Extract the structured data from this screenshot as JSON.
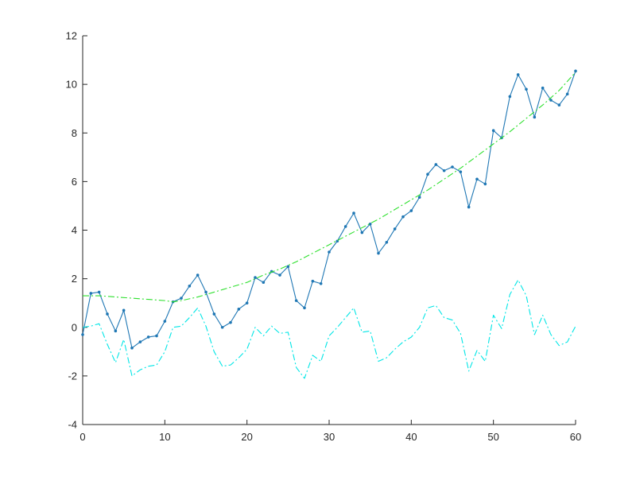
{
  "chart_data": {
    "type": "line",
    "title": "",
    "xlabel": "",
    "ylabel": "",
    "xlim": [
      0,
      60
    ],
    "ylim": [
      -4,
      12
    ],
    "xticks": [
      0,
      10,
      20,
      30,
      40,
      50,
      60
    ],
    "yticks": [
      -4,
      -2,
      0,
      2,
      4,
      6,
      8,
      10,
      12
    ],
    "grid": false,
    "legend": "none",
    "series": [
      {
        "style": "solid-with-dots",
        "color": "#1f77b4",
        "x": [
          0,
          1,
          2,
          3,
          4,
          5,
          6,
          7,
          8,
          9,
          10,
          11,
          12,
          13,
          14,
          15,
          16,
          17,
          18,
          19,
          20,
          21,
          22,
          23,
          24,
          25,
          26,
          27,
          28,
          29,
          30,
          31,
          32,
          33,
          34,
          35,
          36,
          37,
          38,
          39,
          40,
          41,
          42,
          43,
          44,
          45,
          46,
          47,
          48,
          49,
          50,
          51,
          52,
          53,
          54,
          55,
          56,
          57,
          58,
          59,
          60
        ],
        "y": [
          -0.3,
          1.4,
          1.45,
          0.55,
          -0.15,
          0.7,
          -0.85,
          -0.6,
          -0.4,
          -0.35,
          0.25,
          1.05,
          1.2,
          1.7,
          2.15,
          1.45,
          0.55,
          0.0,
          0.2,
          0.75,
          1.0,
          2.05,
          1.85,
          2.3,
          2.15,
          2.5,
          1.1,
          0.8,
          1.9,
          1.8,
          3.1,
          3.55,
          4.15,
          4.7,
          3.9,
          4.25,
          3.05,
          3.5,
          4.05,
          4.55,
          4.8,
          5.35,
          6.3,
          6.7,
          6.45,
          6.6,
          6.4,
          4.95,
          6.1,
          5.9,
          8.1,
          7.8,
          9.5,
          10.4,
          9.8,
          8.65,
          9.85,
          9.35,
          9.15,
          9.6,
          10.55
        ]
      },
      {
        "style": "dash-dot",
        "color": "#2ee02e",
        "x": [
          0,
          2,
          4,
          6,
          8,
          10,
          11,
          12,
          14,
          16,
          18,
          20,
          22,
          24,
          26,
          28,
          30,
          32,
          34,
          36,
          38,
          40,
          42,
          44,
          46,
          48,
          50,
          52,
          54,
          56,
          58,
          60
        ],
        "y": [
          1.3,
          1.3,
          1.25,
          1.2,
          1.15,
          1.1,
          1.05,
          1.1,
          1.25,
          1.45,
          1.65,
          1.85,
          2.15,
          2.4,
          2.7,
          3.05,
          3.4,
          3.75,
          4.1,
          4.45,
          4.85,
          5.25,
          5.65,
          6.1,
          6.55,
          7.05,
          7.55,
          8.05,
          8.6,
          9.15,
          9.75,
          10.5
        ]
      },
      {
        "style": "dash-dot",
        "color": "#00e6e6",
        "x": [
          0,
          1,
          2,
          3,
          4,
          5,
          6,
          7,
          8,
          9,
          10,
          11,
          12,
          13,
          14,
          15,
          16,
          17,
          18,
          19,
          20,
          21,
          22,
          23,
          24,
          25,
          26,
          27,
          28,
          29,
          30,
          31,
          32,
          33,
          34,
          35,
          36,
          37,
          38,
          39,
          40,
          41,
          42,
          43,
          44,
          45,
          46,
          47,
          48,
          49,
          50,
          51,
          52,
          53,
          54,
          55,
          56,
          57,
          58,
          59,
          60
        ],
        "y": [
          0.0,
          0.05,
          0.15,
          -0.7,
          -1.45,
          -0.5,
          -2.0,
          -1.75,
          -1.6,
          -1.55,
          -1.0,
          0.0,
          0.05,
          0.4,
          0.8,
          0.05,
          -1.0,
          -1.6,
          -1.55,
          -1.25,
          -0.9,
          0.0,
          -0.35,
          0.05,
          -0.25,
          -0.2,
          -1.65,
          -2.1,
          -1.15,
          -1.4,
          -0.35,
          0.0,
          0.4,
          0.8,
          -0.2,
          -0.15,
          -1.4,
          -1.25,
          -0.9,
          -0.6,
          -0.4,
          0.0,
          0.8,
          0.9,
          0.4,
          0.3,
          -0.25,
          -1.8,
          -0.95,
          -1.4,
          0.5,
          -0.05,
          1.35,
          1.95,
          1.3,
          -0.3,
          0.5,
          -0.3,
          -0.75,
          -0.6,
          0.05
        ]
      }
    ]
  }
}
